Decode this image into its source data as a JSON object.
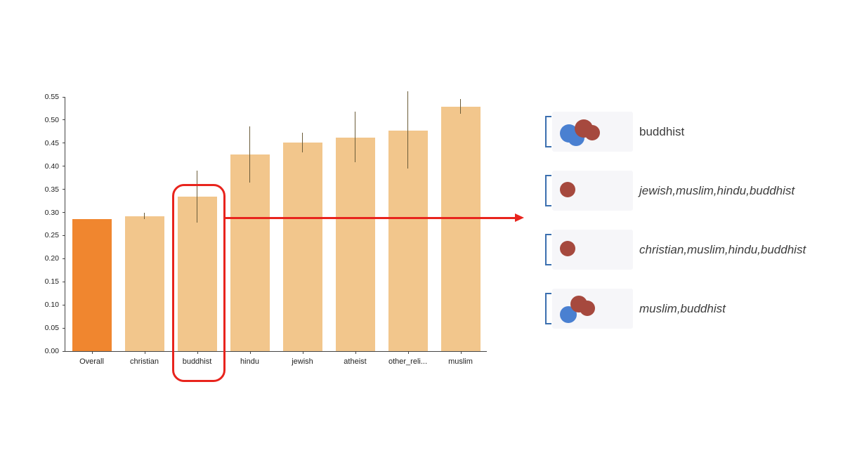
{
  "chart_data": {
    "type": "bar",
    "title": "",
    "xlabel": "",
    "ylabel": "",
    "categories": [
      "Overall",
      "christian",
      "buddhist",
      "hindu",
      "jewish",
      "atheist",
      "other_reli...",
      "muslim"
    ],
    "values": [
      0.285,
      0.292,
      0.334,
      0.425,
      0.451,
      0.462,
      0.477,
      0.528
    ],
    "error_low": [
      null,
      0.286,
      0.278,
      0.365,
      0.43,
      0.408,
      0.395,
      0.514
    ],
    "error_high": [
      null,
      0.3,
      0.39,
      0.486,
      0.472,
      0.518,
      0.562,
      0.546
    ],
    "ylim": [
      0,
      0.55
    ],
    "ytick_step": 0.05,
    "grid": false,
    "legend_position": "right",
    "highlight_category": "buddhist",
    "highlight_index": 2,
    "colors": {
      "overall_bar": "#F0862F",
      "group_bar": "#F2C68C",
      "error_bar": "#6B5C39",
      "highlight": "#E8241D",
      "axis": "#444444"
    }
  },
  "panel": {
    "dot_colors": {
      "blue": "#4A80D1",
      "red": "#A6493E",
      "bracket": "#3B6FAF",
      "box_bg": "#F6F6F9"
    },
    "rows": [
      {
        "label": "buddhist",
        "italic": false,
        "dots": [
          {
            "color": "blue",
            "x": 24,
            "y": 31,
            "r": 13
          },
          {
            "color": "blue",
            "x": 34,
            "y": 37,
            "r": 12
          },
          {
            "color": "red",
            "x": 45,
            "y": 24,
            "r": 13
          },
          {
            "color": "red",
            "x": 57,
            "y": 30,
            "r": 11
          }
        ]
      },
      {
        "label": "jewish,muslim,hindu,buddhist",
        "italic": true,
        "dots": [
          {
            "color": "red",
            "x": 22,
            "y": 27,
            "r": 11
          }
        ]
      },
      {
        "label": "christian,muslim,hindu,buddhist",
        "italic": true,
        "dots": [
          {
            "color": "red",
            "x": 22,
            "y": 27,
            "r": 11
          }
        ]
      },
      {
        "label": "muslim,buddhist",
        "italic": true,
        "dots": [
          {
            "color": "blue",
            "x": 23,
            "y": 37,
            "r": 12
          },
          {
            "color": "red",
            "x": 38,
            "y": 22,
            "r": 12
          },
          {
            "color": "red",
            "x": 50,
            "y": 28,
            "r": 11
          }
        ]
      }
    ]
  }
}
